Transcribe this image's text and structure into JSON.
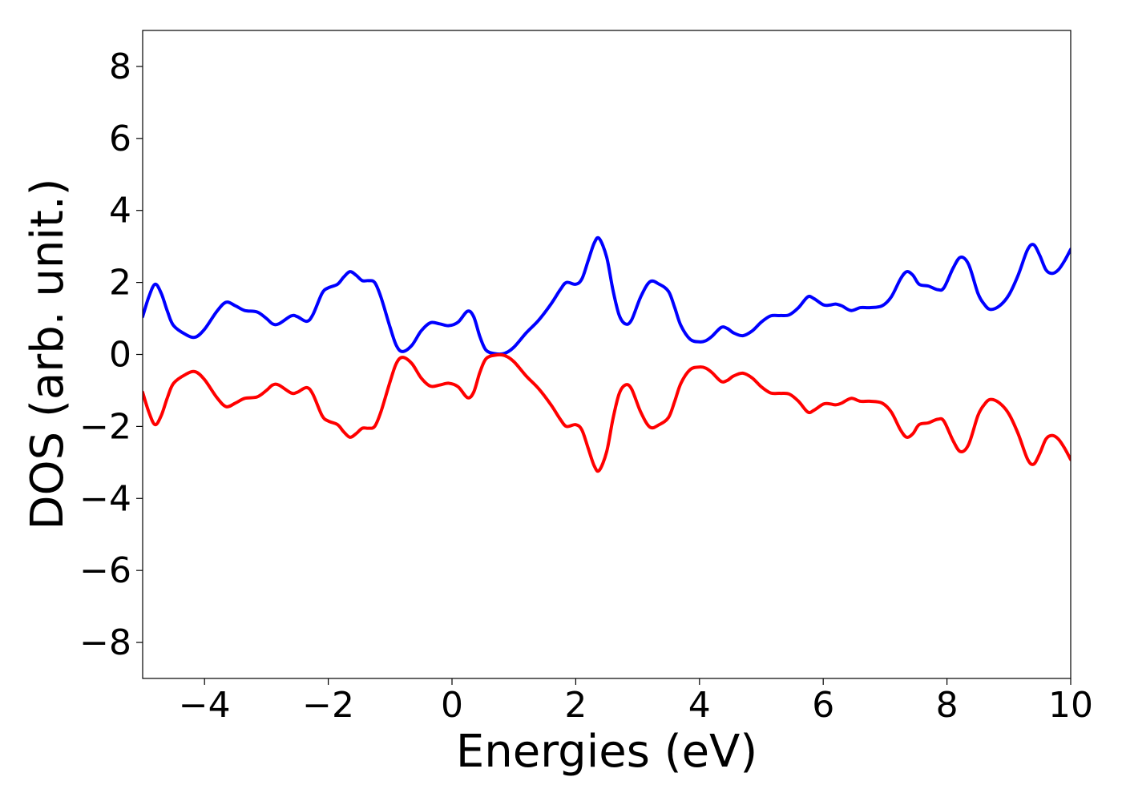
{
  "chart_data": {
    "type": "line",
    "title": "",
    "xlabel": "Energies (eV)",
    "ylabel": "DOS (arb. unit.)",
    "xlim": [
      -5,
      10
    ],
    "ylim": [
      -9,
      9
    ],
    "xticks": [
      -4,
      -2,
      0,
      2,
      4,
      6,
      8,
      10
    ],
    "xtick_labels": [
      "−4",
      "−2",
      "0",
      "2",
      "4",
      "6",
      "8",
      "10"
    ],
    "yticks": [
      -8,
      -6,
      -4,
      -2,
      0,
      2,
      4,
      6,
      8
    ],
    "ytick_labels": [
      "−8",
      "−6",
      "−4",
      "−2",
      "0",
      "2",
      "4",
      "6",
      "8"
    ],
    "grid": false,
    "legend": false,
    "series": [
      {
        "color": "#0000ff",
        "points": [
          [
            -5.0,
            1.05
          ],
          [
            -4.9,
            1.6
          ],
          [
            -4.8,
            1.95
          ],
          [
            -4.7,
            1.7
          ],
          [
            -4.6,
            1.2
          ],
          [
            -4.5,
            0.8
          ],
          [
            -4.3,
            0.55
          ],
          [
            -4.15,
            0.48
          ],
          [
            -4.0,
            0.7
          ],
          [
            -3.8,
            1.2
          ],
          [
            -3.65,
            1.45
          ],
          [
            -3.5,
            1.35
          ],
          [
            -3.35,
            1.22
          ],
          [
            -3.15,
            1.18
          ],
          [
            -3.0,
            1.0
          ],
          [
            -2.9,
            0.85
          ],
          [
            -2.8,
            0.85
          ],
          [
            -2.6,
            1.07
          ],
          [
            -2.5,
            1.05
          ],
          [
            -2.35,
            0.92
          ],
          [
            -2.25,
            1.1
          ],
          [
            -2.1,
            1.7
          ],
          [
            -2.0,
            1.85
          ],
          [
            -1.85,
            1.95
          ],
          [
            -1.75,
            2.15
          ],
          [
            -1.65,
            2.3
          ],
          [
            -1.55,
            2.2
          ],
          [
            -1.45,
            2.05
          ],
          [
            -1.35,
            2.05
          ],
          [
            -1.25,
            2.0
          ],
          [
            -1.15,
            1.6
          ],
          [
            -1.0,
            0.75
          ],
          [
            -0.9,
            0.25
          ],
          [
            -0.8,
            0.08
          ],
          [
            -0.65,
            0.25
          ],
          [
            -0.5,
            0.65
          ],
          [
            -0.35,
            0.88
          ],
          [
            -0.2,
            0.85
          ],
          [
            -0.05,
            0.8
          ],
          [
            0.1,
            0.9
          ],
          [
            0.25,
            1.2
          ],
          [
            0.35,
            1.05
          ],
          [
            0.45,
            0.5
          ],
          [
            0.55,
            0.12
          ],
          [
            0.7,
            0.02
          ],
          [
            0.85,
            0.03
          ],
          [
            1.0,
            0.2
          ],
          [
            1.2,
            0.6
          ],
          [
            1.4,
            0.95
          ],
          [
            1.6,
            1.4
          ],
          [
            1.75,
            1.8
          ],
          [
            1.85,
            2.0
          ],
          [
            2.0,
            1.95
          ],
          [
            2.1,
            2.1
          ],
          [
            2.2,
            2.6
          ],
          [
            2.3,
            3.1
          ],
          [
            2.38,
            3.22
          ],
          [
            2.5,
            2.7
          ],
          [
            2.6,
            1.8
          ],
          [
            2.7,
            1.1
          ],
          [
            2.8,
            0.85
          ],
          [
            2.9,
            0.95
          ],
          [
            3.05,
            1.6
          ],
          [
            3.2,
            2.02
          ],
          [
            3.35,
            1.95
          ],
          [
            3.5,
            1.75
          ],
          [
            3.6,
            1.3
          ],
          [
            3.7,
            0.8
          ],
          [
            3.85,
            0.42
          ],
          [
            4.0,
            0.35
          ],
          [
            4.1,
            0.38
          ],
          [
            4.2,
            0.5
          ],
          [
            4.35,
            0.75
          ],
          [
            4.45,
            0.72
          ],
          [
            4.55,
            0.6
          ],
          [
            4.7,
            0.52
          ],
          [
            4.85,
            0.65
          ],
          [
            5.0,
            0.9
          ],
          [
            5.15,
            1.07
          ],
          [
            5.3,
            1.08
          ],
          [
            5.45,
            1.1
          ],
          [
            5.6,
            1.3
          ],
          [
            5.75,
            1.6
          ],
          [
            5.85,
            1.55
          ],
          [
            6.0,
            1.38
          ],
          [
            6.1,
            1.37
          ],
          [
            6.2,
            1.4
          ],
          [
            6.3,
            1.35
          ],
          [
            6.45,
            1.22
          ],
          [
            6.6,
            1.3
          ],
          [
            6.75,
            1.3
          ],
          [
            6.95,
            1.35
          ],
          [
            7.1,
            1.6
          ],
          [
            7.25,
            2.1
          ],
          [
            7.35,
            2.3
          ],
          [
            7.45,
            2.2
          ],
          [
            7.55,
            1.95
          ],
          [
            7.7,
            1.9
          ],
          [
            7.85,
            1.8
          ],
          [
            7.95,
            1.85
          ],
          [
            8.1,
            2.4
          ],
          [
            8.22,
            2.7
          ],
          [
            8.35,
            2.5
          ],
          [
            8.5,
            1.7
          ],
          [
            8.6,
            1.4
          ],
          [
            8.7,
            1.25
          ],
          [
            8.85,
            1.35
          ],
          [
            9.0,
            1.65
          ],
          [
            9.15,
            2.2
          ],
          [
            9.3,
            2.9
          ],
          [
            9.4,
            3.05
          ],
          [
            9.5,
            2.75
          ],
          [
            9.6,
            2.35
          ],
          [
            9.7,
            2.25
          ],
          [
            9.8,
            2.35
          ],
          [
            9.9,
            2.6
          ],
          [
            10.0,
            2.92
          ]
        ]
      },
      {
        "color": "#ff0000",
        "points": [
          [
            -5.0,
            -1.05
          ],
          [
            -4.9,
            -1.6
          ],
          [
            -4.8,
            -1.95
          ],
          [
            -4.7,
            -1.7
          ],
          [
            -4.6,
            -1.2
          ],
          [
            -4.5,
            -0.8
          ],
          [
            -4.3,
            -0.55
          ],
          [
            -4.15,
            -0.48
          ],
          [
            -4.0,
            -0.7
          ],
          [
            -3.8,
            -1.2
          ],
          [
            -3.65,
            -1.45
          ],
          [
            -3.5,
            -1.35
          ],
          [
            -3.35,
            -1.22
          ],
          [
            -3.15,
            -1.18
          ],
          [
            -3.0,
            -1.0
          ],
          [
            -2.9,
            -0.85
          ],
          [
            -2.8,
            -0.85
          ],
          [
            -2.6,
            -1.07
          ],
          [
            -2.5,
            -1.05
          ],
          [
            -2.35,
            -0.92
          ],
          [
            -2.25,
            -1.1
          ],
          [
            -2.1,
            -1.7
          ],
          [
            -2.0,
            -1.85
          ],
          [
            -1.85,
            -1.95
          ],
          [
            -1.75,
            -2.15
          ],
          [
            -1.65,
            -2.3
          ],
          [
            -1.55,
            -2.2
          ],
          [
            -1.45,
            -2.05
          ],
          [
            -1.35,
            -2.05
          ],
          [
            -1.25,
            -2.0
          ],
          [
            -1.15,
            -1.6
          ],
          [
            -1.0,
            -0.75
          ],
          [
            -0.9,
            -0.25
          ],
          [
            -0.8,
            -0.08
          ],
          [
            -0.65,
            -0.25
          ],
          [
            -0.5,
            -0.65
          ],
          [
            -0.35,
            -0.88
          ],
          [
            -0.2,
            -0.85
          ],
          [
            -0.05,
            -0.8
          ],
          [
            0.1,
            -0.9
          ],
          [
            0.25,
            -1.2
          ],
          [
            0.35,
            -1.05
          ],
          [
            0.45,
            -0.5
          ],
          [
            0.55,
            -0.12
          ],
          [
            0.7,
            -0.02
          ],
          [
            0.85,
            -0.03
          ],
          [
            1.0,
            -0.2
          ],
          [
            1.2,
            -0.6
          ],
          [
            1.4,
            -0.95
          ],
          [
            1.6,
            -1.4
          ],
          [
            1.75,
            -1.8
          ],
          [
            1.85,
            -2.0
          ],
          [
            2.0,
            -1.95
          ],
          [
            2.1,
            -2.1
          ],
          [
            2.2,
            -2.6
          ],
          [
            2.3,
            -3.1
          ],
          [
            2.38,
            -3.22
          ],
          [
            2.5,
            -2.7
          ],
          [
            2.6,
            -1.8
          ],
          [
            2.7,
            -1.1
          ],
          [
            2.8,
            -0.85
          ],
          [
            2.9,
            -0.95
          ],
          [
            3.05,
            -1.6
          ],
          [
            3.2,
            -2.02
          ],
          [
            3.35,
            -1.95
          ],
          [
            3.5,
            -1.75
          ],
          [
            3.6,
            -1.3
          ],
          [
            3.7,
            -0.8
          ],
          [
            3.85,
            -0.42
          ],
          [
            4.0,
            -0.35
          ],
          [
            4.1,
            -0.38
          ],
          [
            4.2,
            -0.5
          ],
          [
            4.35,
            -0.75
          ],
          [
            4.45,
            -0.72
          ],
          [
            4.55,
            -0.6
          ],
          [
            4.7,
            -0.52
          ],
          [
            4.85,
            -0.65
          ],
          [
            5.0,
            -0.9
          ],
          [
            5.15,
            -1.07
          ],
          [
            5.3,
            -1.08
          ],
          [
            5.45,
            -1.1
          ],
          [
            5.6,
            -1.3
          ],
          [
            5.75,
            -1.6
          ],
          [
            5.85,
            -1.55
          ],
          [
            6.0,
            -1.38
          ],
          [
            6.1,
            -1.37
          ],
          [
            6.2,
            -1.4
          ],
          [
            6.3,
            -1.35
          ],
          [
            6.45,
            -1.22
          ],
          [
            6.6,
            -1.3
          ],
          [
            6.75,
            -1.3
          ],
          [
            6.95,
            -1.35
          ],
          [
            7.1,
            -1.6
          ],
          [
            7.25,
            -2.1
          ],
          [
            7.35,
            -2.3
          ],
          [
            7.45,
            -2.2
          ],
          [
            7.55,
            -1.95
          ],
          [
            7.7,
            -1.9
          ],
          [
            7.85,
            -1.8
          ],
          [
            7.95,
            -1.85
          ],
          [
            8.1,
            -2.4
          ],
          [
            8.22,
            -2.7
          ],
          [
            8.35,
            -2.5
          ],
          [
            8.5,
            -1.7
          ],
          [
            8.6,
            -1.4
          ],
          [
            8.7,
            -1.25
          ],
          [
            8.85,
            -1.35
          ],
          [
            9.0,
            -1.65
          ],
          [
            9.15,
            -2.2
          ],
          [
            9.3,
            -2.9
          ],
          [
            9.4,
            -3.05
          ],
          [
            9.5,
            -2.75
          ],
          [
            9.6,
            -2.35
          ],
          [
            9.7,
            -2.25
          ],
          [
            9.8,
            -2.35
          ],
          [
            9.9,
            -2.6
          ],
          [
            10.0,
            -2.92
          ]
        ]
      }
    ]
  }
}
